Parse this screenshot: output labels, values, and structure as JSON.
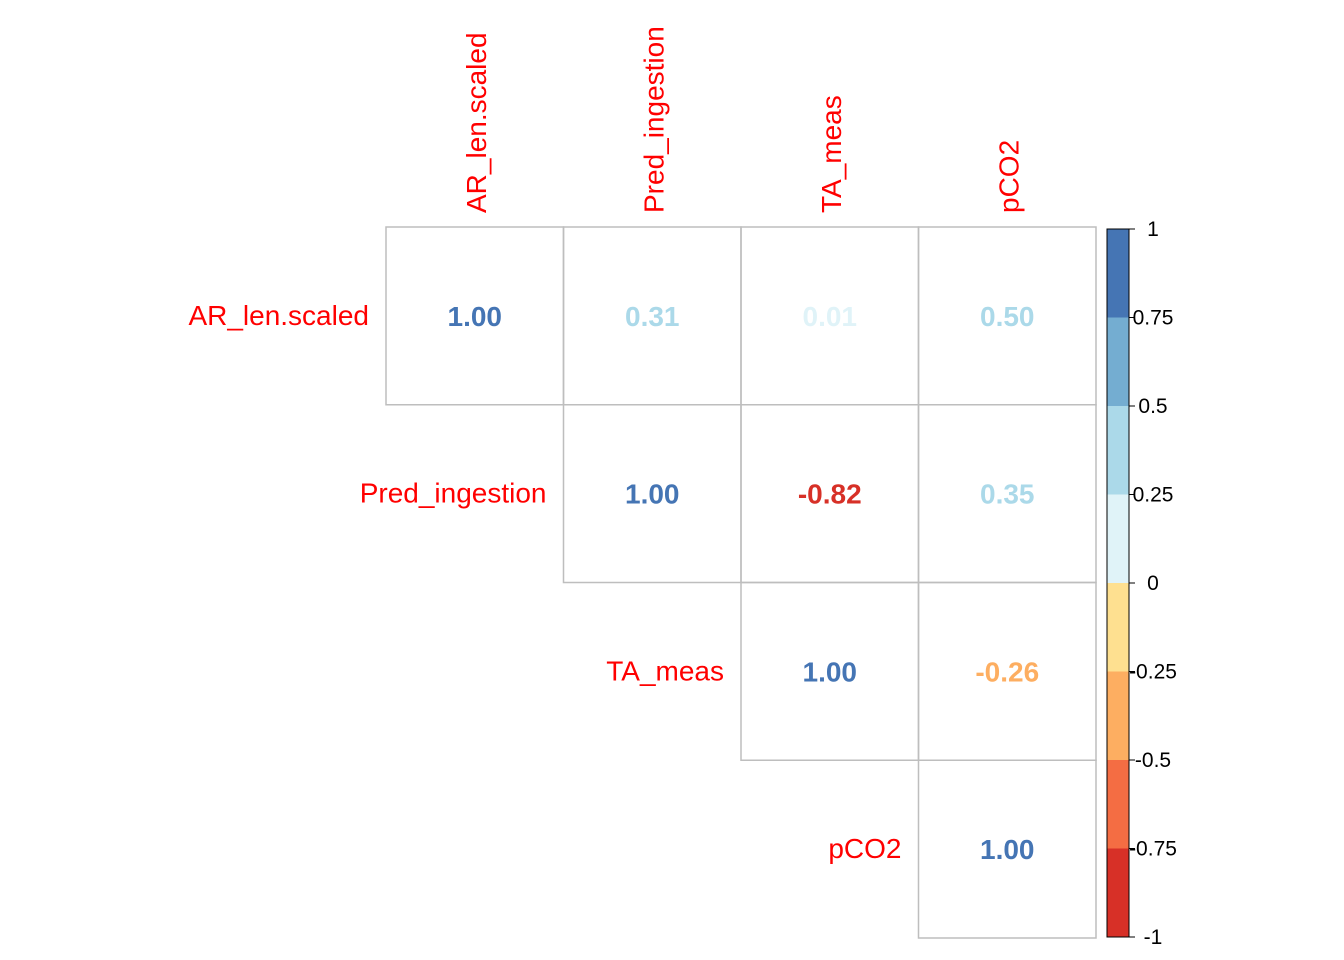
{
  "chart_data": {
    "type": "heatmap",
    "variables": [
      "AR_len.scaled",
      "Pred_ingestion",
      "TA_meas",
      "pCO2"
    ],
    "matrix": [
      [
        "1.00",
        "0.31",
        "0.01",
        "0.50"
      ],
      [
        null,
        "1.00",
        "-0.82",
        "0.35"
      ],
      [
        null,
        null,
        "1.00",
        "-0.26"
      ],
      [
        null,
        null,
        null,
        "1.00"
      ]
    ],
    "layout": "upper-triangle",
    "label_color": "#ff0000",
    "colorbar": {
      "ticks": [
        "1",
        "0.75",
        "0.5",
        "0.25",
        "0",
        "-0.25",
        "-0.5",
        "-0.75",
        "-1"
      ],
      "range": [
        -1,
        1
      ],
      "bins": [
        {
          "from": 0.75,
          "to": 1,
          "color": "#4575b4"
        },
        {
          "from": 0.5,
          "to": 0.75,
          "color": "#74add1"
        },
        {
          "from": 0.25,
          "to": 0.5,
          "color": "#abd9e9"
        },
        {
          "from": 0,
          "to": 0.25,
          "color": "#e0f3f8"
        },
        {
          "from": -0.25,
          "to": 0,
          "color": "#fee090"
        },
        {
          "from": -0.5,
          "to": -0.25,
          "color": "#fdae61"
        },
        {
          "from": -0.75,
          "to": -0.5,
          "color": "#f46d43"
        },
        {
          "from": -1,
          "to": -0.75,
          "color": "#d73027"
        }
      ]
    }
  }
}
